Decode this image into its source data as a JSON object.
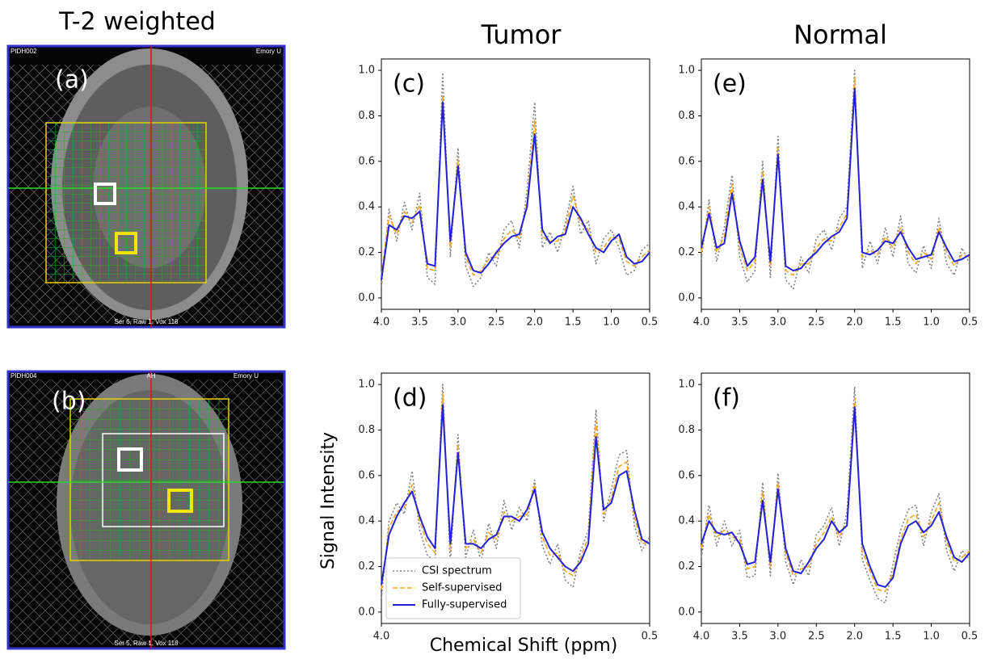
{
  "figure": {
    "left_title": "T-2 weighted",
    "column_titles": [
      "Tumor",
      "Normal"
    ],
    "y_label": "Signal Intensity",
    "x_label": "Chemical Shift (ppm)"
  },
  "images": [
    {
      "panel": "(a)",
      "top_left": "PIDH002",
      "top_right": "Emory U",
      "bottom": "Ser 6, Raw 1, Vox 118"
    },
    {
      "panel": "(b)",
      "top_left": "PIDH004",
      "top_center": "AH",
      "top_right": "Emory U",
      "bottom": "Ser 5, Raw 1, Vox 118"
    }
  ],
  "chart_data": [
    {
      "type": "line",
      "annotation": "(c)",
      "x": [
        4,
        3.9,
        3.8,
        3.7,
        3.6,
        3.5,
        3.4,
        3.3,
        3.2,
        3.1,
        3,
        2.9,
        2.8,
        2.7,
        2.6,
        2.5,
        2.4,
        2.3,
        2.2,
        2.1,
        2,
        1.9,
        1.8,
        1.7,
        1.6,
        1.5,
        1.4,
        1.3,
        1.2,
        1.1,
        1,
        0.9,
        0.8,
        0.7,
        0.6,
        0.5
      ],
      "xlim": [
        4,
        0.5
      ],
      "xticks": [
        {
          "value": 4,
          "label": "4.0"
        },
        3.5,
        {
          "value": 3,
          "label": "3.0"
        },
        2.5,
        {
          "value": 2,
          "label": "2.0"
        },
        1.5,
        {
          "value": 1,
          "label": "1.0"
        },
        0.5
      ],
      "ylim": [
        -0.05,
        1.05
      ],
      "yticks": [
        {
          "value": 0,
          "label": "0.0"
        },
        0.2,
        0.4,
        0.6,
        0.8,
        {
          "value": 1,
          "label": "1.0"
        }
      ],
      "series": [
        {
          "color": "#808080",
          "style": "dotted",
          "values": [
            0.05,
            0.39,
            0.25,
            0.42,
            0.3,
            0.46,
            0.09,
            0.06,
            0.99,
            0.18,
            0.66,
            0.14,
            0.05,
            0.09,
            0.2,
            0.14,
            0.3,
            0.34,
            0.22,
            0.47,
            0.86,
            0.22,
            0.29,
            0.2,
            0.33,
            0.49,
            0.28,
            0.34,
            0.15,
            0.26,
            0.3,
            0.22,
            0.1,
            0.12,
            0.21,
            0.24
          ]
        },
        {
          "color": "#f5a623",
          "style": "dashed",
          "values": [
            0.1,
            0.36,
            0.28,
            0.38,
            0.33,
            0.41,
            0.13,
            0.12,
            0.89,
            0.22,
            0.61,
            0.18,
            0.1,
            0.12,
            0.17,
            0.18,
            0.26,
            0.3,
            0.26,
            0.42,
            0.78,
            0.27,
            0.25,
            0.25,
            0.3,
            0.45,
            0.33,
            0.3,
            0.2,
            0.22,
            0.27,
            0.26,
            0.16,
            0.14,
            0.18,
            0.21
          ]
        },
        {
          "color": "#2222d4",
          "style": "solid",
          "values": [
            0.08,
            0.32,
            0.3,
            0.36,
            0.35,
            0.38,
            0.15,
            0.14,
            0.86,
            0.25,
            0.58,
            0.2,
            0.12,
            0.11,
            0.15,
            0.2,
            0.24,
            0.27,
            0.28,
            0.4,
            0.72,
            0.3,
            0.24,
            0.27,
            0.28,
            0.4,
            0.35,
            0.28,
            0.22,
            0.2,
            0.25,
            0.28,
            0.18,
            0.15,
            0.16,
            0.2
          ]
        }
      ]
    },
    {
      "type": "line",
      "annotation": "(d)",
      "legend": "lower left",
      "x": [
        4,
        3.9,
        3.8,
        3.7,
        3.6,
        3.5,
        3.4,
        3.3,
        3.2,
        3.1,
        3,
        2.9,
        2.8,
        2.7,
        2.6,
        2.5,
        2.4,
        2.3,
        2.2,
        2.1,
        2,
        1.9,
        1.8,
        1.7,
        1.6,
        1.5,
        1.4,
        1.3,
        1.2,
        1.1,
        1,
        0.9,
        0.8,
        0.7,
        0.6,
        0.5
      ],
      "xlim": [
        4,
        0.5
      ],
      "xticks": [
        {
          "value": 4,
          "label": "4.0"
        },
        0.5
      ],
      "ylim": [
        -0.05,
        1.05
      ],
      "yticks": [
        {
          "value": 0,
          "label": "0.0"
        },
        0.2,
        0.4,
        0.6,
        0.8,
        {
          "value": 1,
          "label": "1.0"
        }
      ],
      "series": [
        {
          "name": "CSI spectrum",
          "color": "#808080",
          "style": "dotted",
          "values": [
            0.06,
            0.4,
            0.48,
            0.43,
            0.62,
            0.36,
            0.25,
            0.22,
            1.0,
            0.21,
            0.78,
            0.24,
            0.36,
            0.22,
            0.39,
            0.28,
            0.49,
            0.36,
            0.46,
            0.4,
            0.58,
            0.29,
            0.21,
            0.3,
            0.14,
            0.11,
            0.27,
            0.36,
            0.89,
            0.4,
            0.54,
            0.69,
            0.71,
            0.38,
            0.27,
            0.33
          ]
        },
        {
          "name": "Self-supervised",
          "color": "#f5a623",
          "style": "dashed",
          "values": [
            0.1,
            0.37,
            0.44,
            0.46,
            0.56,
            0.4,
            0.3,
            0.26,
            0.96,
            0.27,
            0.74,
            0.28,
            0.32,
            0.26,
            0.35,
            0.32,
            0.44,
            0.4,
            0.42,
            0.43,
            0.56,
            0.33,
            0.25,
            0.26,
            0.18,
            0.16,
            0.24,
            0.33,
            0.84,
            0.43,
            0.5,
            0.64,
            0.66,
            0.42,
            0.3,
            0.31
          ]
        },
        {
          "name": "Fully-supervised",
          "color": "#2222d4",
          "style": "solid",
          "values": [
            0.12,
            0.34,
            0.42,
            0.48,
            0.53,
            0.42,
            0.33,
            0.28,
            0.91,
            0.3,
            0.7,
            0.3,
            0.3,
            0.28,
            0.32,
            0.34,
            0.42,
            0.42,
            0.4,
            0.45,
            0.54,
            0.35,
            0.28,
            0.24,
            0.2,
            0.18,
            0.22,
            0.3,
            0.77,
            0.45,
            0.48,
            0.6,
            0.62,
            0.45,
            0.32,
            0.3
          ]
        }
      ]
    },
    {
      "type": "line",
      "annotation": "(e)",
      "x": [
        4,
        3.9,
        3.8,
        3.7,
        3.6,
        3.5,
        3.4,
        3.3,
        3.2,
        3.1,
        3,
        2.9,
        2.8,
        2.7,
        2.6,
        2.5,
        2.4,
        2.3,
        2.2,
        2.1,
        2,
        1.9,
        1.8,
        1.7,
        1.6,
        1.5,
        1.4,
        1.3,
        1.2,
        1.1,
        1,
        0.9,
        0.8,
        0.7,
        0.6,
        0.5
      ],
      "xlim": [
        4,
        0.5
      ],
      "xticks": [
        {
          "value": 4,
          "label": "4.0"
        },
        3.5,
        {
          "value": 3,
          "label": "3.0"
        },
        2.5,
        {
          "value": 2,
          "label": "2.0"
        },
        1.5,
        {
          "value": 1,
          "label": "1.0"
        },
        0.5
      ],
      "ylim": [
        -0.05,
        1.05
      ],
      "yticks": [
        {
          "value": 0,
          "label": "0.0"
        },
        0.2,
        0.4,
        0.6,
        0.8,
        {
          "value": 1,
          "label": "1.0"
        }
      ],
      "series": [
        {
          "color": "#808080",
          "style": "dotted",
          "values": [
            0.17,
            0.43,
            0.16,
            0.31,
            0.54,
            0.18,
            0.07,
            0.12,
            0.6,
            0.09,
            0.71,
            0.08,
            0.04,
            0.18,
            0.11,
            0.26,
            0.3,
            0.21,
            0.35,
            0.4,
            1.0,
            0.13,
            0.25,
            0.15,
            0.31,
            0.18,
            0.36,
            0.15,
            0.11,
            0.23,
            0.13,
            0.35,
            0.15,
            0.1,
            0.22,
            0.15
          ]
        },
        {
          "color": "#f5a623",
          "style": "dashed",
          "values": [
            0.2,
            0.4,
            0.2,
            0.27,
            0.5,
            0.22,
            0.12,
            0.16,
            0.56,
            0.14,
            0.66,
            0.12,
            0.1,
            0.15,
            0.15,
            0.22,
            0.26,
            0.25,
            0.31,
            0.37,
            0.97,
            0.18,
            0.21,
            0.19,
            0.27,
            0.22,
            0.31,
            0.2,
            0.15,
            0.2,
            0.17,
            0.31,
            0.2,
            0.14,
            0.19,
            0.18
          ]
        },
        {
          "color": "#2222d4",
          "style": "solid",
          "values": [
            0.22,
            0.37,
            0.22,
            0.24,
            0.46,
            0.25,
            0.14,
            0.18,
            0.52,
            0.16,
            0.63,
            0.14,
            0.12,
            0.13,
            0.17,
            0.2,
            0.24,
            0.27,
            0.29,
            0.35,
            0.92,
            0.2,
            0.19,
            0.21,
            0.25,
            0.24,
            0.29,
            0.22,
            0.17,
            0.18,
            0.19,
            0.29,
            0.22,
            0.16,
            0.17,
            0.19
          ]
        }
      ]
    },
    {
      "type": "line",
      "annotation": "(f)",
      "x": [
        4,
        3.9,
        3.8,
        3.7,
        3.6,
        3.5,
        3.4,
        3.3,
        3.2,
        3.1,
        3,
        2.9,
        2.8,
        2.7,
        2.6,
        2.5,
        2.4,
        2.3,
        2.2,
        2.1,
        2,
        1.9,
        1.8,
        1.7,
        1.6,
        1.5,
        1.4,
        1.3,
        1.2,
        1.1,
        1,
        0.9,
        0.8,
        0.7,
        0.6,
        0.5
      ],
      "xlim": [
        4,
        0.5
      ],
      "xticks": [
        {
          "value": 4,
          "label": "4.0"
        },
        3.5,
        {
          "value": 3,
          "label": "3.0"
        },
        2.5,
        {
          "value": 2,
          "label": "2.0"
        },
        1.5,
        {
          "value": 1,
          "label": "1.0"
        },
        0.5
      ],
      "ylim": [
        -0.05,
        1.05
      ],
      "yticks": [
        {
          "value": 0,
          "label": "0.0"
        },
        0.2,
        0.4,
        0.6,
        0.8,
        {
          "value": 1,
          "label": "1.0"
        }
      ],
      "series": [
        {
          "color": "#808080",
          "style": "dotted",
          "values": [
            0.24,
            0.47,
            0.29,
            0.4,
            0.29,
            0.36,
            0.15,
            0.16,
            0.57,
            0.16,
            0.61,
            0.22,
            0.12,
            0.23,
            0.16,
            0.34,
            0.38,
            0.46,
            0.29,
            0.44,
            0.99,
            0.23,
            0.14,
            0.06,
            0.04,
            0.21,
            0.36,
            0.45,
            0.47,
            0.29,
            0.44,
            0.52,
            0.27,
            0.18,
            0.27,
            0.23
          ]
        },
        {
          "color": "#f5a623",
          "style": "dashed",
          "values": [
            0.28,
            0.43,
            0.33,
            0.36,
            0.33,
            0.32,
            0.19,
            0.2,
            0.53,
            0.2,
            0.57,
            0.26,
            0.16,
            0.19,
            0.2,
            0.3,
            0.35,
            0.42,
            0.33,
            0.4,
            0.94,
            0.27,
            0.18,
            0.1,
            0.09,
            0.17,
            0.32,
            0.41,
            0.43,
            0.33,
            0.4,
            0.48,
            0.31,
            0.22,
            0.24,
            0.27
          ]
        },
        {
          "color": "#2222d4",
          "style": "solid",
          "values": [
            0.3,
            0.4,
            0.35,
            0.34,
            0.35,
            0.3,
            0.21,
            0.22,
            0.49,
            0.22,
            0.54,
            0.28,
            0.18,
            0.17,
            0.22,
            0.28,
            0.32,
            0.4,
            0.35,
            0.38,
            0.9,
            0.3,
            0.2,
            0.12,
            0.11,
            0.15,
            0.3,
            0.38,
            0.4,
            0.35,
            0.38,
            0.44,
            0.33,
            0.24,
            0.22,
            0.26
          ]
        }
      ]
    }
  ]
}
